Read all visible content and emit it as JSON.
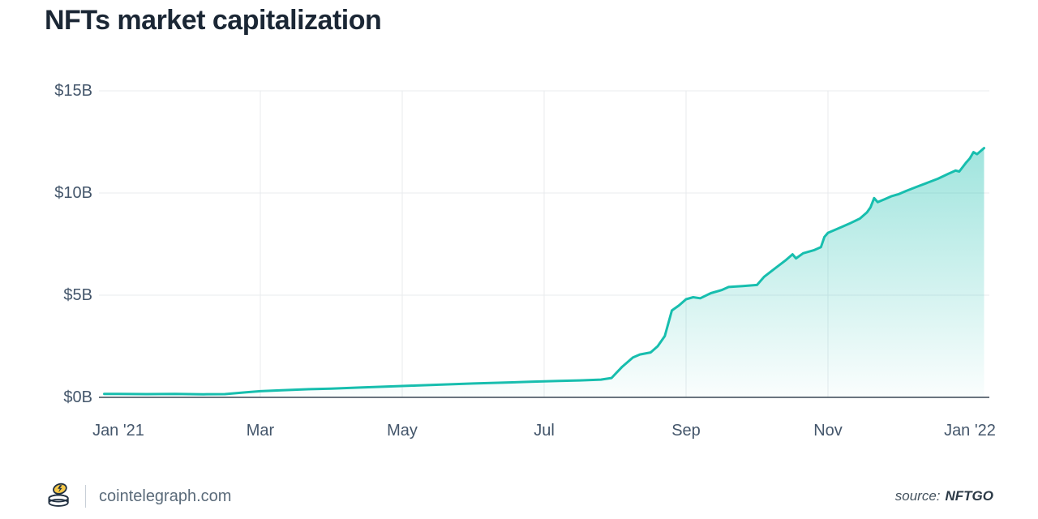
{
  "colors": {
    "title": "#1b2735",
    "line": "#17beae",
    "fill_top": "rgba(23,190,174,0.50)",
    "fill_bottom": "rgba(23,190,174,0.02)",
    "grid": "#e8ebee",
    "axis": "#3a4754",
    "tick": "#44566b"
  },
  "footer": {
    "site": "cointelegraph.com",
    "source_label": "source:",
    "source_name": "NFTGO"
  },
  "chart_data": {
    "type": "area",
    "title": "NFTs market capitalization",
    "xlabel": "",
    "ylabel": "",
    "x_unit": "months since Jan 2021",
    "y_unit": "USD billions",
    "ylim": [
      0,
      15
    ],
    "xlim": [
      -0.2,
      12.3
    ],
    "grid": "on",
    "legend": "none",
    "y_ticks": [
      {
        "value": 0,
        "label": "$0B"
      },
      {
        "value": 5,
        "label": "$5B"
      },
      {
        "value": 10,
        "label": "$10B"
      },
      {
        "value": 15,
        "label": "$15B"
      }
    ],
    "x_ticks": [
      {
        "value": 0,
        "label": "Jan '21",
        "grid": false
      },
      {
        "value": 2,
        "label": "Mar",
        "grid": true
      },
      {
        "value": 4,
        "label": "May",
        "grid": true
      },
      {
        "value": 6,
        "label": "Jul",
        "grid": true
      },
      {
        "value": 8,
        "label": "Sep",
        "grid": true
      },
      {
        "value": 10,
        "label": "Nov",
        "grid": true
      },
      {
        "value": 12,
        "label": "Jan '22",
        "grid": false
      }
    ],
    "points": [
      [
        -0.2,
        0.17
      ],
      [
        0,
        0.17
      ],
      [
        0.4,
        0.16
      ],
      [
        0.8,
        0.17
      ],
      [
        1.2,
        0.15
      ],
      [
        1.5,
        0.16
      ],
      [
        1.8,
        0.25
      ],
      [
        2.0,
        0.3
      ],
      [
        2.3,
        0.35
      ],
      [
        2.7,
        0.4
      ],
      [
        3.0,
        0.43
      ],
      [
        3.4,
        0.48
      ],
      [
        3.8,
        0.53
      ],
      [
        4.2,
        0.58
      ],
      [
        4.6,
        0.63
      ],
      [
        5.0,
        0.68
      ],
      [
        5.4,
        0.72
      ],
      [
        5.8,
        0.76
      ],
      [
        6.2,
        0.8
      ],
      [
        6.5,
        0.83
      ],
      [
        6.8,
        0.87
      ],
      [
        6.95,
        0.95
      ],
      [
        7.1,
        1.5
      ],
      [
        7.25,
        1.95
      ],
      [
        7.35,
        2.1
      ],
      [
        7.5,
        2.2
      ],
      [
        7.6,
        2.5
      ],
      [
        7.7,
        3.0
      ],
      [
        7.8,
        4.25
      ],
      [
        7.9,
        4.5
      ],
      [
        8.0,
        4.8
      ],
      [
        8.1,
        4.9
      ],
      [
        8.2,
        4.85
      ],
      [
        8.35,
        5.1
      ],
      [
        8.5,
        5.25
      ],
      [
        8.6,
        5.4
      ],
      [
        8.8,
        5.45
      ],
      [
        9.0,
        5.5
      ],
      [
        9.1,
        5.9
      ],
      [
        9.25,
        6.3
      ],
      [
        9.4,
        6.7
      ],
      [
        9.5,
        7.0
      ],
      [
        9.55,
        6.8
      ],
      [
        9.65,
        7.05
      ],
      [
        9.8,
        7.2
      ],
      [
        9.9,
        7.35
      ],
      [
        9.95,
        7.85
      ],
      [
        10.0,
        8.05
      ],
      [
        10.1,
        8.2
      ],
      [
        10.2,
        8.35
      ],
      [
        10.3,
        8.5
      ],
      [
        10.45,
        8.75
      ],
      [
        10.55,
        9.05
      ],
      [
        10.6,
        9.3
      ],
      [
        10.65,
        9.75
      ],
      [
        10.7,
        9.55
      ],
      [
        10.8,
        9.7
      ],
      [
        10.9,
        9.85
      ],
      [
        11.0,
        9.95
      ],
      [
        11.1,
        10.1
      ],
      [
        11.25,
        10.3
      ],
      [
        11.4,
        10.5
      ],
      [
        11.55,
        10.7
      ],
      [
        11.7,
        10.95
      ],
      [
        11.8,
        11.1
      ],
      [
        11.85,
        11.05
      ],
      [
        11.95,
        11.5
      ],
      [
        12.0,
        11.7
      ],
      [
        12.05,
        12.0
      ],
      [
        12.1,
        11.9
      ],
      [
        12.2,
        12.2
      ]
    ]
  }
}
